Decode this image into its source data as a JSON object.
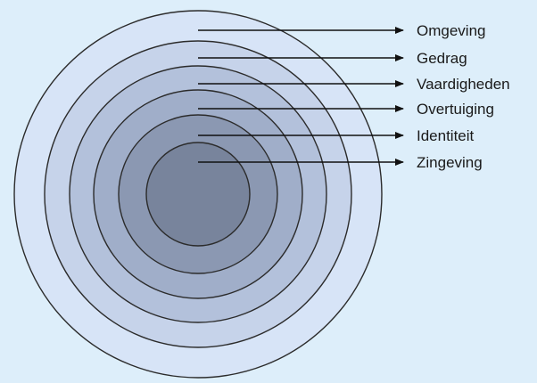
{
  "diagram": {
    "background_color": "#ddeefa",
    "ring_stroke_color": "#2b2b2b",
    "arrow_color": "#111111",
    "layers": [
      {
        "label": "Omgeving",
        "fill": "#d7e4f7"
      },
      {
        "label": "Gedrag",
        "fill": "#c6d3ea"
      },
      {
        "label": "Vaardigheden",
        "fill": "#b3c1db"
      },
      {
        "label": "Overtuiging",
        "fill": "#a0aec9"
      },
      {
        "label": "Identiteit",
        "fill": "#8b98b2"
      },
      {
        "label": "Zingeving",
        "fill": "#78849c"
      }
    ]
  }
}
